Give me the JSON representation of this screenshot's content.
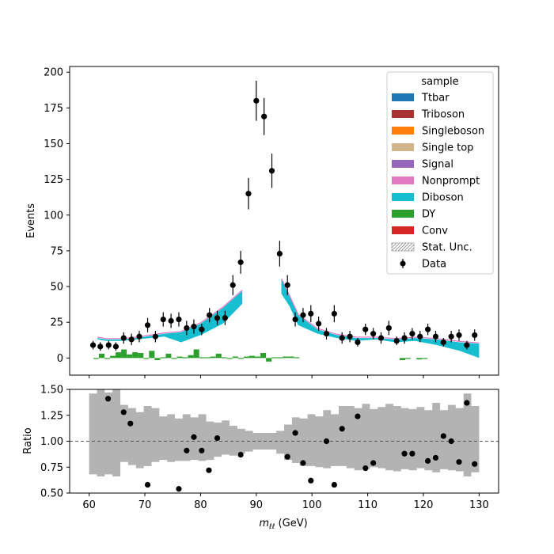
{
  "chart_data": [
    {
      "type": "histogram",
      "ylabel": "Events",
      "xlim": [
        56.5,
        133.5
      ],
      "ylim": [
        -12,
        204
      ],
      "xticks": [
        "60",
        "70",
        "80",
        "90",
        "100",
        "110",
        "120",
        "130"
      ],
      "yticks": [
        "0",
        "25",
        "50",
        "75",
        "100",
        "125",
        "150",
        "175",
        "200"
      ],
      "legend_title": "sample",
      "legend_position": "upper right",
      "legend": [
        {
          "name": "Ttbar",
          "color": "#1f77b4",
          "kind": "patch"
        },
        {
          "name": "Triboson",
          "color": "#a83232",
          "kind": "patch"
        },
        {
          "name": "Singleboson",
          "color": "#ff7f0e",
          "kind": "patch"
        },
        {
          "name": "Single top",
          "color": "#d2b48c",
          "kind": "patch"
        },
        {
          "name": "Signal",
          "color": "#9467bd",
          "kind": "patch"
        },
        {
          "name": "Nonprompt",
          "color": "#e377c2",
          "kind": "patch"
        },
        {
          "name": "Diboson",
          "color": "#17becf",
          "kind": "patch"
        },
        {
          "name": "DY",
          "color": "#2ca02c",
          "kind": "patch"
        },
        {
          "name": "Conv",
          "color": "#d62728",
          "kind": "patch"
        },
        {
          "name": "Stat. Unc.",
          "color": "#888888",
          "kind": "hatch"
        },
        {
          "name": "Data",
          "color": "#000000",
          "kind": "errorbar"
        }
      ],
      "dy_bins": {
        "x": [
          61.25,
          62.25,
          63.25,
          64.25,
          65.25,
          66.25,
          67.25,
          68.25,
          69.25,
          70.25,
          71.25,
          72.25,
          73.25,
          74.25,
          75.25,
          76.25,
          77.25,
          78.25,
          79.25,
          80.25,
          81.25,
          82.25,
          83.25,
          84.25,
          85.25,
          86.25,
          87.25,
          88.25,
          89.25,
          90.25,
          91.25,
          92.25,
          93.25,
          94.25,
          95.25,
          96.25,
          97.25,
          116.25,
          117.25,
          119.25,
          120.25
        ],
        "values": [
          -0.5,
          3,
          0,
          1.5,
          4,
          6,
          2.5,
          4,
          3.5,
          0,
          5,
          -1.5,
          0.5,
          3,
          -0.5,
          1,
          0.5,
          2,
          6,
          0.5,
          0.5,
          1,
          3,
          0.5,
          0,
          1,
          0,
          1,
          1.5,
          1,
          3.5,
          -2.5,
          0.5,
          0.5,
          1,
          1,
          0.5,
          -1.5,
          -0.5,
          -1,
          -0.5
        ]
      },
      "diboson_band": {
        "x": [
          61.5,
          63.0,
          66.0,
          68.5,
          73.5,
          76.5,
          80.0,
          84.0,
          87.5,
          94.5,
          96.0,
          97.5,
          101.0,
          104.5,
          108.0,
          111.5,
          115.0,
          118.5,
          122.5,
          126.5,
          130.0
        ],
        "upper": [
          14,
          13,
          13,
          14,
          17,
          18,
          24,
          35,
          47,
          55,
          43,
          30,
          20,
          16,
          14,
          14,
          13,
          14,
          13,
          11,
          10
        ],
        "lower": [
          13,
          12,
          12,
          13,
          15,
          11,
          16,
          24,
          38,
          45,
          36,
          23,
          17,
          14,
          12,
          13,
          11,
          12,
          9,
          5,
          0
        ]
      },
      "data_points": {
        "x": [
          60.7,
          62.0,
          63.5,
          64.8,
          66.2,
          67.6,
          69.0,
          70.5,
          71.9,
          73.3,
          74.7,
          76.1,
          77.5,
          78.8,
          80.2,
          81.6,
          83.0,
          84.4,
          85.8,
          87.2,
          88.6,
          90.0,
          91.4,
          92.8,
          94.2,
          95.6,
          97.0,
          98.4,
          99.8,
          101.2,
          102.6,
          104.0,
          105.4,
          106.8,
          108.2,
          109.6,
          111.0,
          112.4,
          113.8,
          115.2,
          116.6,
          118.0,
          119.4,
          120.8,
          122.2,
          123.6,
          125.0,
          126.4,
          127.8,
          129.2
        ],
        "y": [
          9,
          8,
          9,
          8,
          14,
          13,
          15,
          23,
          15,
          27,
          26,
          27,
          21,
          22,
          20,
          30,
          28,
          28,
          51,
          67,
          115,
          180,
          169,
          131,
          73,
          51,
          27,
          30,
          31,
          24,
          17,
          31,
          14,
          15,
          11,
          20,
          17,
          14,
          21,
          12,
          14,
          17,
          15,
          20,
          15,
          11,
          15,
          16,
          9,
          16
        ],
        "yerr": [
          3,
          3,
          3,
          3,
          4,
          4,
          4,
          5,
          4,
          5,
          5,
          5,
          5,
          5,
          4,
          5,
          5,
          5,
          7,
          8,
          11,
          14,
          13,
          12,
          9,
          7,
          5,
          5,
          6,
          5,
          4,
          6,
          4,
          4,
          3,
          4,
          4,
          4,
          5,
          3,
          4,
          4,
          4,
          4,
          4,
          3,
          4,
          4,
          3,
          4
        ]
      }
    },
    {
      "type": "ratio",
      "xlabel": "m_ll (GeV)",
      "ylabel": "Ratio",
      "xlim": [
        56.5,
        133.5
      ],
      "ylim": [
        0.5,
        1.5
      ],
      "reference": 1.0,
      "xticks": [
        "60",
        "70",
        "80",
        "90",
        "100",
        "110",
        "120",
        "130"
      ],
      "yticks": [
        "0.50",
        "0.75",
        "1.00",
        "1.25",
        "1.50"
      ],
      "unc_band": {
        "edges": [
          60,
          61.4,
          62.8,
          64.2,
          65.6,
          67.0,
          68.4,
          69.8,
          71.2,
          72.6,
          74.0,
          75.4,
          76.8,
          78.2,
          79.6,
          81.0,
          82.4,
          83.8,
          85.2,
          86.6,
          88.0,
          89.4,
          90.8,
          92.2,
          93.6,
          95.0,
          96.4,
          97.8,
          99.2,
          100.6,
          102.0,
          103.4,
          104.8,
          106.2,
          107.6,
          109.0,
          110.4,
          111.8,
          113.2,
          114.6,
          116.0,
          117.4,
          118.8,
          120.2,
          121.6,
          123.0,
          124.4,
          125.8,
          127.2,
          128.6,
          130.0
        ],
        "upper": [
          1.46,
          1.5,
          1.47,
          1.5,
          1.35,
          1.32,
          1.28,
          1.34,
          1.32,
          1.24,
          1.26,
          1.22,
          1.26,
          1.23,
          1.26,
          1.19,
          1.18,
          1.2,
          1.15,
          1.12,
          1.1,
          1.08,
          1.08,
          1.08,
          1.1,
          1.16,
          1.23,
          1.22,
          1.26,
          1.24,
          1.3,
          1.26,
          1.34,
          1.34,
          1.32,
          1.36,
          1.31,
          1.33,
          1.36,
          1.34,
          1.32,
          1.31,
          1.33,
          1.3,
          1.37,
          1.3,
          1.35,
          1.32,
          1.46,
          1.34
        ],
        "lower": [
          0.68,
          0.66,
          0.68,
          0.66,
          0.8,
          0.77,
          0.74,
          0.76,
          0.8,
          0.82,
          0.8,
          0.81,
          0.81,
          0.82,
          0.81,
          0.82,
          0.85,
          0.87,
          0.86,
          0.88,
          0.9,
          0.92,
          0.92,
          0.92,
          0.88,
          0.82,
          0.79,
          0.76,
          0.76,
          0.75,
          0.74,
          0.76,
          0.76,
          0.74,
          0.72,
          0.73,
          0.75,
          0.74,
          0.72,
          0.71,
          0.73,
          0.72,
          0.74,
          0.72,
          0.7,
          0.73,
          0.72,
          0.71,
          0.66,
          0.7
        ]
      },
      "points": {
        "x": [
          63.4,
          66.2,
          67.4,
          70.5,
          76.1,
          77.5,
          78.8,
          80.2,
          81.5,
          83.0,
          87.2,
          95.6,
          97.0,
          98.4,
          99.8,
          102.6,
          104.0,
          105.4,
          108.2,
          109.6,
          111.0,
          116.6,
          118.0,
          120.8,
          122.2,
          123.6,
          125.0,
          126.4,
          127.8,
          129.2
        ],
        "y": [
          1.41,
          1.28,
          1.17,
          0.58,
          0.54,
          0.91,
          1.04,
          0.91,
          0.72,
          1.03,
          0.87,
          0.85,
          1.08,
          0.79,
          0.62,
          1.0,
          0.58,
          1.12,
          1.24,
          0.74,
          0.79,
          0.88,
          0.88,
          0.81,
          0.84,
          1.05,
          1.0,
          0.8,
          1.37,
          0.78
        ]
      }
    }
  ]
}
